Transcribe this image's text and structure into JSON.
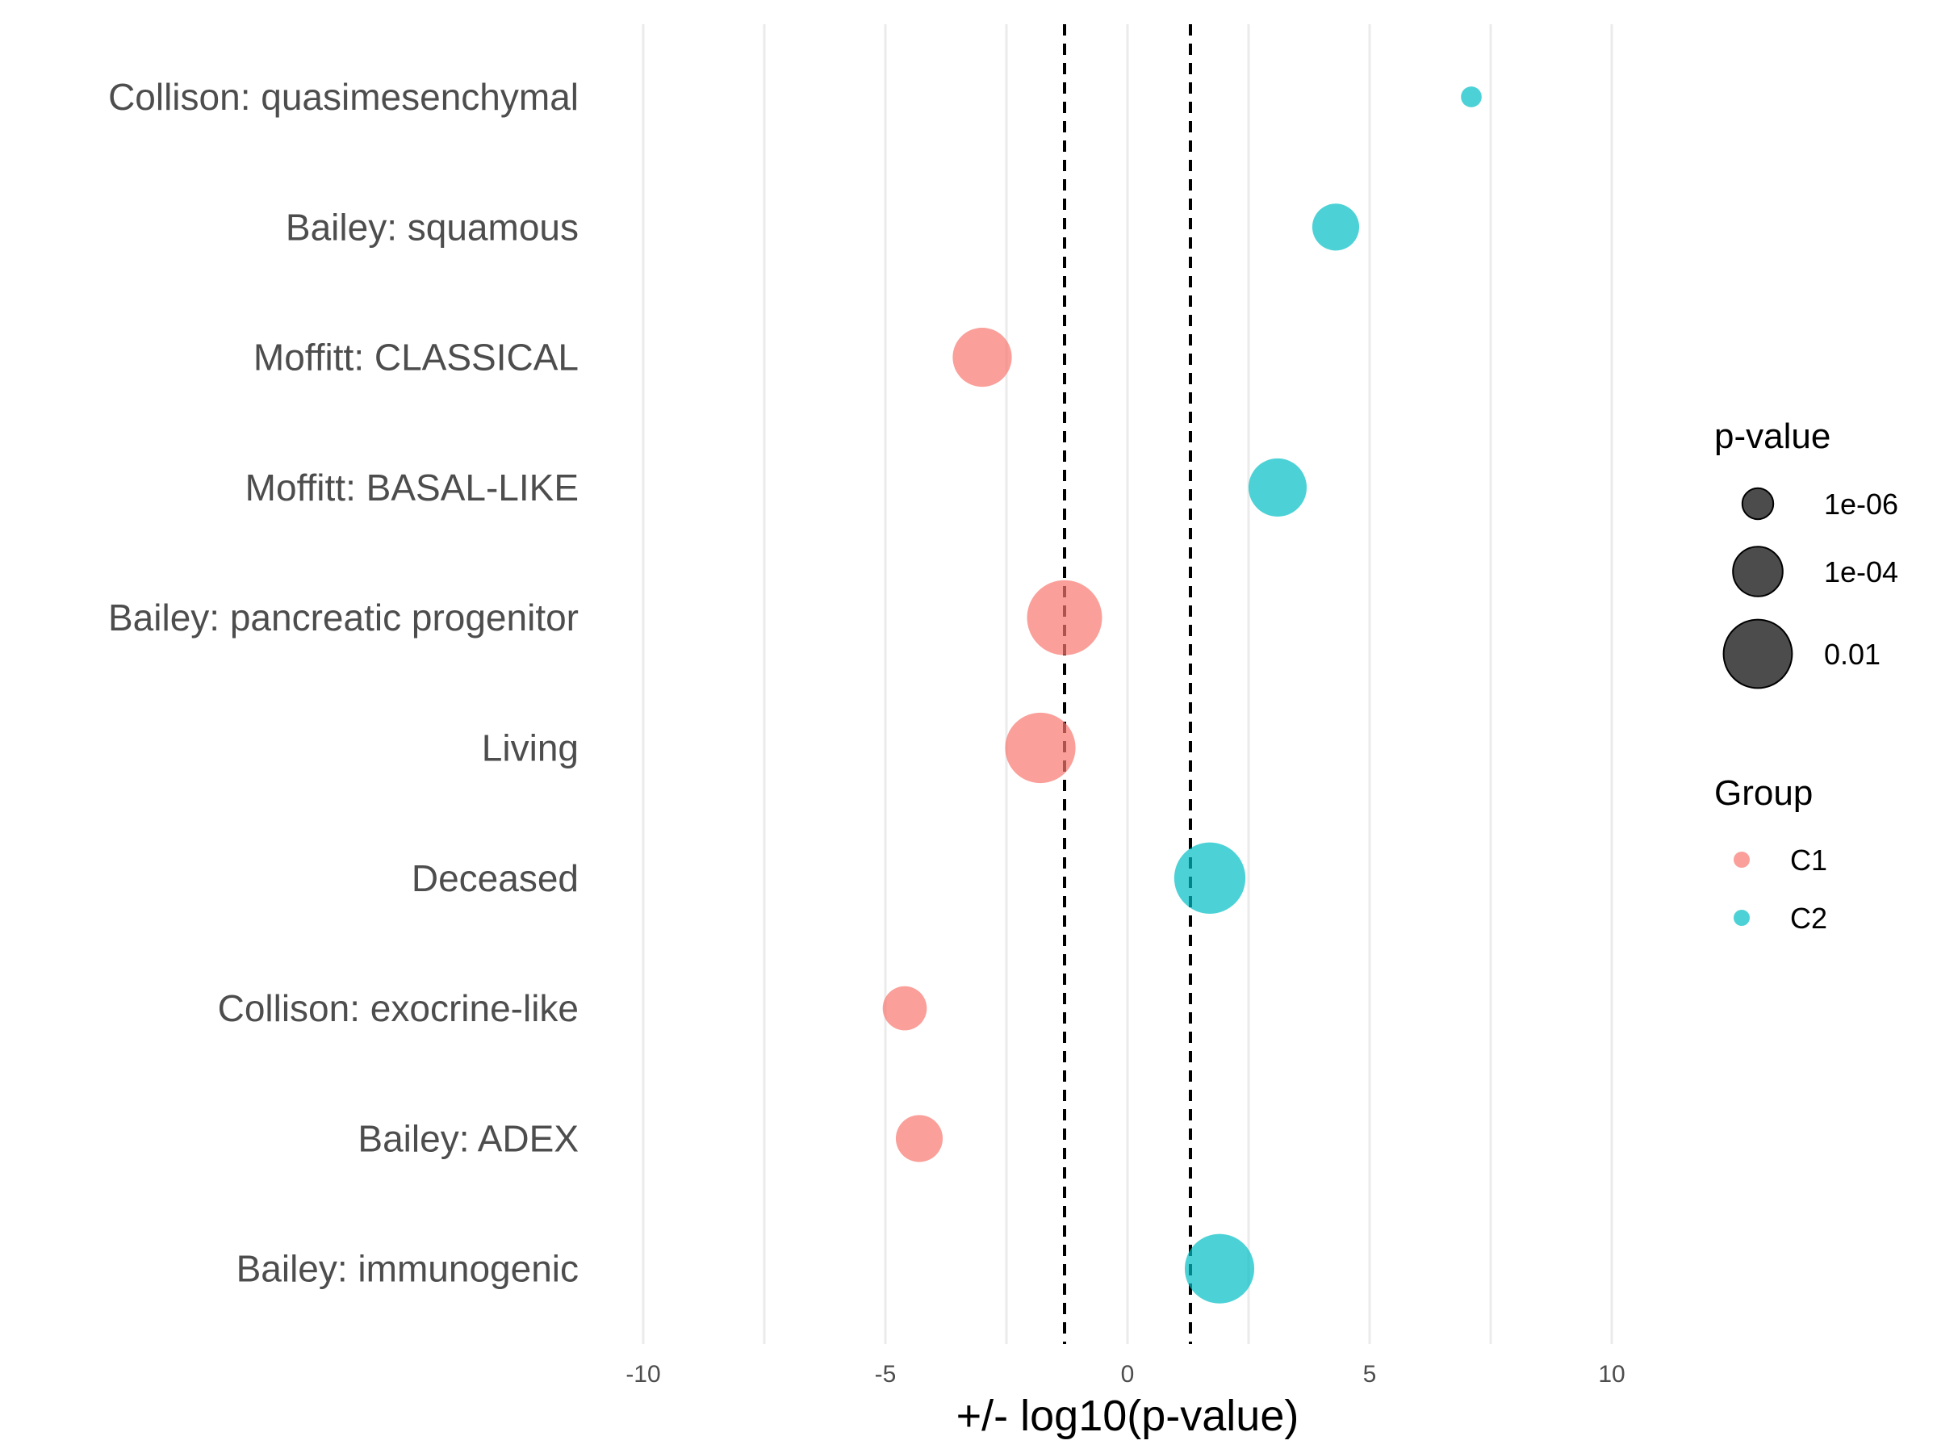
{
  "chart_data": {
    "type": "scatter",
    "title": "",
    "xlabel": "+/- log10(p-value)",
    "ylabel": "",
    "xlim": [
      -10,
      10
    ],
    "x_ticks": [
      "-10",
      "-5",
      "0",
      "5",
      "10"
    ],
    "x_tick_values": [
      -10,
      -5,
      0,
      5,
      10
    ],
    "grid": true,
    "reference_lines": [
      -1.3,
      1.3
    ],
    "categories": [
      "Collison: quasimesenchymal",
      "Bailey: squamous",
      "Moffitt: CLASSICAL",
      "Moffitt: BASAL-LIKE",
      "Bailey: pancreatic progenitor",
      "Living",
      "Deceased",
      "Collison: exocrine-like",
      "Bailey: ADEX",
      "Bailey: immunogenic"
    ],
    "points": [
      {
        "category": "Collison: quasimesenchymal",
        "x": 7.1,
        "group": "C2",
        "pvalue": 8e-08
      },
      {
        "category": "Bailey: squamous",
        "x": 4.3,
        "group": "C2",
        "pvalue": 5e-05
      },
      {
        "category": "Moffitt: CLASSICAL",
        "x": -3.0,
        "group": "C1",
        "pvalue": 0.001
      },
      {
        "category": "Moffitt: BASAL-LIKE",
        "x": 3.1,
        "group": "C2",
        "pvalue": 0.0008
      },
      {
        "category": "Bailey: pancreatic progenitor",
        "x": -1.3,
        "group": "C1",
        "pvalue": 0.05
      },
      {
        "category": "Living",
        "x": -1.8,
        "group": "C1",
        "pvalue": 0.016
      },
      {
        "category": "Deceased",
        "x": 1.7,
        "group": "C2",
        "pvalue": 0.02
      },
      {
        "category": "Collison: exocrine-like",
        "x": -4.6,
        "group": "C1",
        "pvalue": 2.5e-05
      },
      {
        "category": "Bailey: ADEX",
        "x": -4.3,
        "group": "C1",
        "pvalue": 5e-05
      },
      {
        "category": "Bailey: immunogenic",
        "x": 1.9,
        "group": "C2",
        "pvalue": 0.013
      }
    ],
    "size_legend": {
      "title": "p-value",
      "entries": [
        {
          "label": "1e-06",
          "value": 1e-06
        },
        {
          "label": "1e-04",
          "value": 0.0001
        },
        {
          "label": "0.01",
          "value": 0.01
        }
      ]
    },
    "color_legend": {
      "title": "Group",
      "entries": [
        {
          "label": "C1",
          "color": "#f8766d"
        },
        {
          "label": "C2",
          "color": "#00bfc4"
        }
      ]
    },
    "legend_position": "right",
    "colors": {
      "C1": "#f8766d",
      "C2": "#00bfc4",
      "grid": "#ebebeb",
      "reference": "#000000"
    }
  }
}
